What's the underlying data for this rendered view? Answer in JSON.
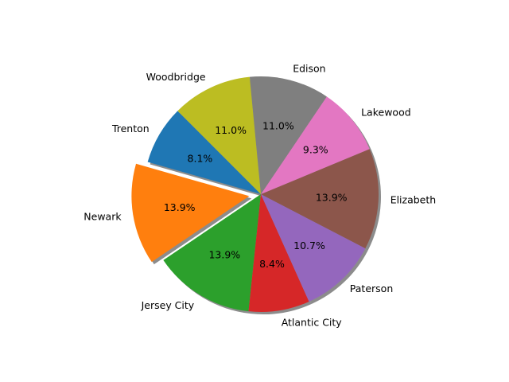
{
  "chart_data": {
    "type": "pie",
    "title": "",
    "start_angle_deg": 135,
    "direction": "counterclockwise",
    "shadow": true,
    "slices": [
      {
        "label": "Trenton",
        "value": 8.1,
        "pct_label": "8.1%",
        "color": "#1f77b4",
        "explode": 0
      },
      {
        "label": "Newark",
        "value": 13.9,
        "pct_label": "13.9%",
        "color": "#ff7f0e",
        "explode": 0.1
      },
      {
        "label": "Jersey City",
        "value": 13.9,
        "pct_label": "13.9%",
        "color": "#2ca02c",
        "explode": 0
      },
      {
        "label": "Atlantic City",
        "value": 8.4,
        "pct_label": "8.4%",
        "color": "#d62728",
        "explode": 0
      },
      {
        "label": "Paterson",
        "value": 10.7,
        "pct_label": "10.7%",
        "color": "#9467bd",
        "explode": 0
      },
      {
        "label": "Elizabeth",
        "value": 13.9,
        "pct_label": "13.9%",
        "color": "#8c564b",
        "explode": 0
      },
      {
        "label": "Lakewood",
        "value": 9.3,
        "pct_label": "9.3%",
        "color": "#e377c2",
        "explode": 0
      },
      {
        "label": "Edison",
        "value": 11.0,
        "pct_label": "11.0%",
        "color": "#7f7f7f",
        "explode": 0
      },
      {
        "label": "Woodbridge",
        "value": 11.0,
        "pct_label": "11.0%",
        "color": "#bcbd22",
        "explode": 0
      }
    ]
  }
}
